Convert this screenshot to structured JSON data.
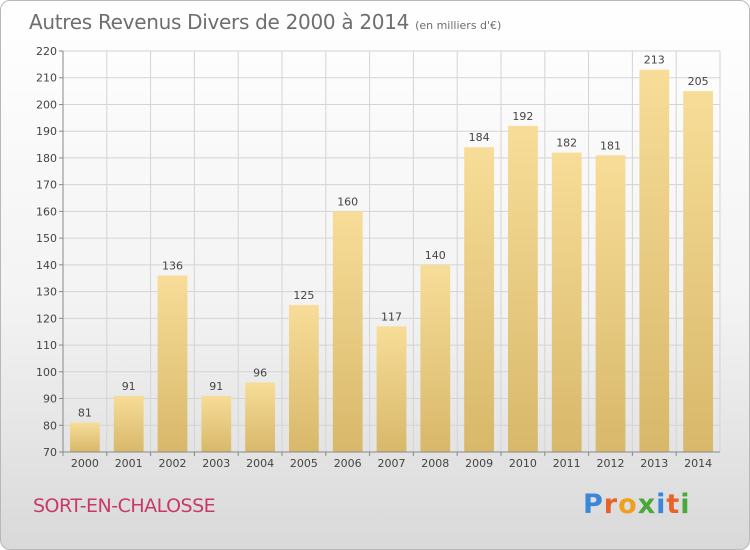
{
  "title": "Autres Revenus Divers de 2000 à 2014",
  "subtitle": "(en milliers d'€)",
  "commune": "SORT-EN-CHALOSSE",
  "brand": {
    "letters": [
      "P",
      "r",
      "o",
      "x",
      "i",
      "t",
      "i"
    ],
    "colors": [
      "#3a86d8",
      "#e8622c",
      "#f0a020",
      "#4aa83a",
      "#3a86d8",
      "#e8622c",
      "#4aa83a"
    ]
  },
  "chart_data": {
    "type": "bar",
    "categories": [
      "2000",
      "2001",
      "2002",
      "2003",
      "2004",
      "2005",
      "2006",
      "2007",
      "2008",
      "2009",
      "2010",
      "2011",
      "2012",
      "2013",
      "2014"
    ],
    "values": [
      81,
      91,
      136,
      91,
      96,
      125,
      160,
      117,
      140,
      184,
      192,
      182,
      181,
      213,
      205
    ],
    "data_labels": [
      "81",
      "91",
      "136",
      "91",
      "96",
      "125",
      "160",
      "117",
      "140",
      "184",
      "192",
      "182",
      "181",
      "213",
      "205"
    ],
    "yticks": [
      "70",
      "80",
      "90",
      "100",
      "110",
      "120",
      "130",
      "140",
      "150",
      "160",
      "170",
      "180",
      "190",
      "200",
      "210",
      "220"
    ],
    "ylim": [
      70,
      220
    ],
    "title": "Autres Revenus Divers de 2000 à 2014",
    "xlabel": "",
    "ylabel": "",
    "grid": true,
    "bar_color_light": "#f7dd98",
    "bar_color_dark": "#d8b86a",
    "grid_color": "#d4d4d4"
  }
}
